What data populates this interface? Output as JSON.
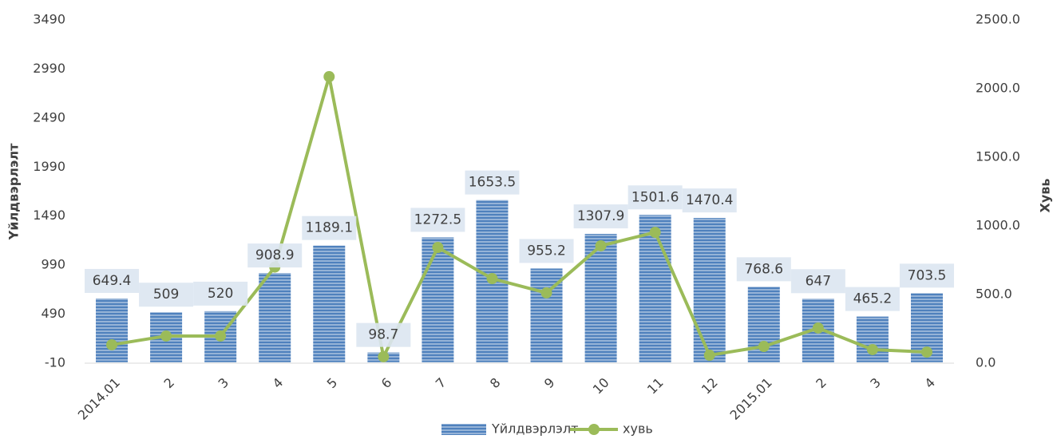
{
  "chart_data": {
    "type": "bar_line",
    "categories": [
      "2014.01",
      "2",
      "3",
      "4",
      "5",
      "6",
      "7",
      "8",
      "9",
      "10",
      "11",
      "12",
      "2015.01",
      "2",
      "3",
      "4"
    ],
    "series": [
      {
        "name": "Үйлдвэрлэлт",
        "color": "#4f81bd",
        "type": "bar",
        "values": [
          649.4,
          509,
          520,
          908.9,
          1189.1,
          98.7,
          1272.5,
          1653.5,
          955.2,
          1307.9,
          1501.6,
          1470.4,
          768.6,
          647,
          465.2,
          703.5
        ]
      },
      {
        "name": "хувь",
        "color": "#9bbb59",
        "type": "line",
        "axis": "y2",
        "values": [
          134,
          198,
          198,
          700,
          2087,
          47,
          843,
          616,
          512,
          855,
          953,
          58,
          122,
          256,
          99,
          81
        ]
      }
    ],
    "ylabel": "Үйлдвэрлэлт",
    "y2label": "Хувь",
    "ylim": [
      -10,
      3490
    ],
    "yticks": [
      -10,
      490,
      990,
      1490,
      1990,
      2490,
      2990,
      3490
    ],
    "y2lim": [
      0,
      2500
    ],
    "y2ticks": [
      {
        "value": 0,
        "label": "0.0"
      },
      {
        "value": 500,
        "label": "500.0"
      },
      {
        "value": 1000,
        "label": "1000.0"
      },
      {
        "value": 1500,
        "label": "1500.0"
      },
      {
        "value": 2000,
        "label": "2000.0"
      },
      {
        "value": 2500,
        "label": "2500.0"
      }
    ],
    "legend": "bottom"
  }
}
